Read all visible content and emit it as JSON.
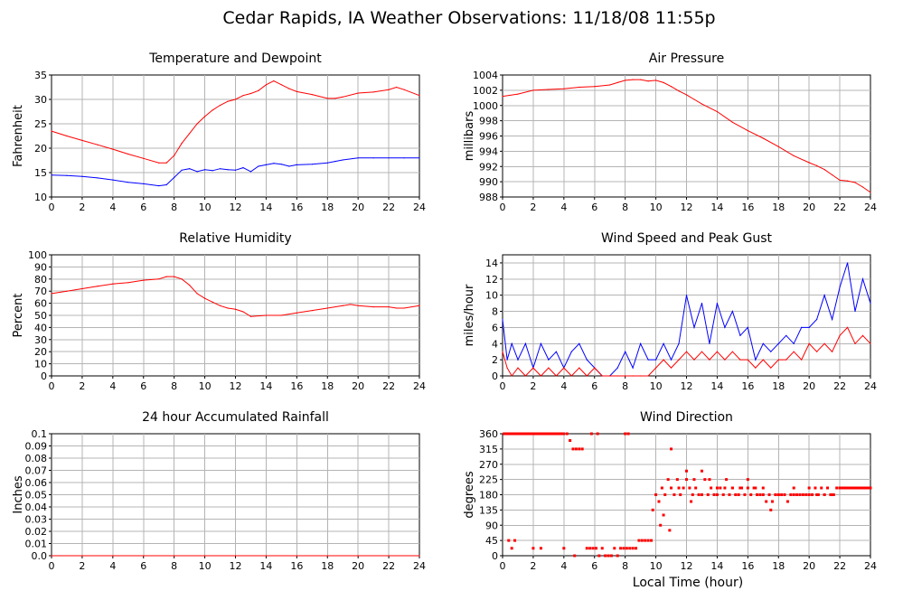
{
  "page_title": "Cedar Rapids, IA Weather Observations: 11/18/08 11:55p",
  "xlabel_global": "Local Time (hour)",
  "colors": {
    "red": "#ff0000",
    "blue": "#0000ff",
    "grid": "#b4b4b4"
  },
  "chart_data": [
    {
      "id": "temp",
      "type": "line",
      "title": "Temperature and Dewpoint",
      "ylabel": "Fahrenheit",
      "xlim": [
        0,
        24
      ],
      "ylim": [
        10,
        35
      ],
      "xticks": [
        0,
        2,
        4,
        6,
        8,
        10,
        12,
        14,
        16,
        18,
        20,
        22,
        24
      ],
      "yticks": [
        10,
        15,
        20,
        25,
        30,
        35
      ],
      "ytick_labels": [
        "10",
        "15",
        "20",
        "25",
        "30",
        "35"
      ],
      "grid": true,
      "series": [
        {
          "color": "#ff0000",
          "x": [
            0,
            1,
            2,
            3,
            4,
            5,
            6,
            7,
            7.5,
            8,
            8.5,
            9,
            9.5,
            10,
            10.5,
            11,
            11.5,
            12,
            12.5,
            13,
            13.5,
            14,
            14.5,
            15,
            15.5,
            16,
            17,
            18,
            18.5,
            19,
            20,
            21,
            22,
            22.5,
            23,
            24
          ],
          "y": [
            23.5,
            22.5,
            21.6,
            20.7,
            19.8,
            18.8,
            17.9,
            17.0,
            17.0,
            18.5,
            21.0,
            23.0,
            25.0,
            26.5,
            27.8,
            28.8,
            29.6,
            30.0,
            30.8,
            31.2,
            31.8,
            33.0,
            33.8,
            33.0,
            32.2,
            31.6,
            31.0,
            30.2,
            30.2,
            30.5,
            31.3,
            31.5,
            32.0,
            32.5,
            32.0,
            30.8
          ]
        },
        {
          "color": "#0000ff",
          "x": [
            0,
            1,
            2,
            3,
            4,
            5,
            6,
            7,
            7.5,
            8,
            8.5,
            9,
            9.5,
            10,
            10.5,
            11,
            11.5,
            12,
            12.5,
            13,
            13.5,
            14,
            14.5,
            15,
            15.5,
            16,
            17,
            18,
            18.5,
            19,
            20,
            21,
            22,
            23,
            24
          ],
          "y": [
            14.5,
            14.4,
            14.2,
            13.9,
            13.5,
            13.0,
            12.7,
            12.3,
            12.5,
            14.0,
            15.5,
            15.8,
            15.2,
            15.6,
            15.4,
            15.8,
            15.6,
            15.5,
            16.0,
            15.2,
            16.3,
            16.6,
            16.9,
            16.7,
            16.3,
            16.6,
            16.7,
            17.0,
            17.3,
            17.6,
            18.0,
            18.0,
            18.0,
            18.0,
            18.0
          ]
        }
      ]
    },
    {
      "id": "pressure",
      "type": "line",
      "title": "Air Pressure",
      "ylabel": "millibars",
      "xlim": [
        0,
        24
      ],
      "ylim": [
        988,
        1004
      ],
      "xticks": [
        0,
        2,
        4,
        6,
        8,
        10,
        12,
        14,
        16,
        18,
        20,
        22,
        24
      ],
      "yticks": [
        988,
        990,
        992,
        994,
        996,
        998,
        1000,
        1002,
        1004
      ],
      "ytick_labels": [
        "988",
        "990",
        "992",
        "994",
        "996",
        "998",
        "1000",
        "1002",
        "1004"
      ],
      "grid": true,
      "series": [
        {
          "color": "#ff0000",
          "x": [
            0,
            1,
            2,
            3,
            4,
            5,
            6,
            7,
            7.5,
            8,
            8.5,
            9,
            9.5,
            10,
            10.5,
            11,
            11.5,
            12,
            12.5,
            13,
            14,
            15,
            16,
            17,
            18,
            19,
            20,
            20.5,
            21,
            21.5,
            22,
            22.5,
            23,
            23.5,
            24
          ],
          "y": [
            1001.2,
            1001.5,
            1002.0,
            1002.1,
            1002.2,
            1002.4,
            1002.5,
            1002.7,
            1003.0,
            1003.3,
            1003.4,
            1003.4,
            1003.2,
            1003.3,
            1003.0,
            1002.5,
            1001.9,
            1001.4,
            1000.8,
            1000.2,
            999.2,
            997.8,
            996.7,
            995.7,
            994.6,
            993.4,
            992.5,
            992.1,
            991.6,
            990.9,
            990.2,
            990.1,
            989.9,
            989.3,
            988.6
          ]
        }
      ]
    },
    {
      "id": "humidity",
      "type": "line",
      "title": "Relative Humidity",
      "ylabel": "Percent",
      "xlim": [
        0,
        24
      ],
      "ylim": [
        0,
        100
      ],
      "xticks": [
        0,
        2,
        4,
        6,
        8,
        10,
        12,
        14,
        16,
        18,
        20,
        22,
        24
      ],
      "yticks": [
        0,
        10,
        20,
        30,
        40,
        50,
        60,
        70,
        80,
        90,
        100
      ],
      "ytick_labels": [
        "0",
        "10",
        "20",
        "30",
        "40",
        "50",
        "60",
        "70",
        "80",
        "90",
        "100"
      ],
      "grid": true,
      "series": [
        {
          "color": "#ff0000",
          "x": [
            0,
            1,
            2,
            3,
            4,
            5,
            6,
            7,
            7.5,
            8,
            8.5,
            9,
            9.5,
            10,
            10.5,
            11,
            11.5,
            12,
            12.5,
            13,
            14,
            15,
            16,
            17,
            18,
            19,
            19.5,
            20,
            21,
            22,
            22.5,
            23,
            24
          ],
          "y": [
            68,
            70,
            72,
            74,
            76,
            77,
            79,
            80,
            82,
            82,
            80,
            75,
            68,
            64,
            61,
            58,
            56,
            55,
            53,
            49,
            50,
            50,
            52,
            54,
            56,
            58,
            59,
            58,
            57,
            57,
            56,
            56,
            58
          ]
        }
      ]
    },
    {
      "id": "wind",
      "type": "line",
      "title": "Wind Speed and Peak Gust",
      "ylabel": "miles/hour",
      "xlim": [
        0,
        24
      ],
      "ylim": [
        0,
        15
      ],
      "xticks": [
        0,
        2,
        4,
        6,
        8,
        10,
        12,
        14,
        16,
        18,
        20,
        22,
        24
      ],
      "yticks": [
        0,
        2,
        4,
        6,
        8,
        10,
        12,
        14
      ],
      "ytick_labels": [
        "0",
        "2",
        "4",
        "6",
        "8",
        "10",
        "12",
        "14"
      ],
      "grid": true,
      "series": [
        {
          "color": "#0000ff",
          "x": [
            0,
            0.3,
            0.6,
            1,
            1.5,
            2,
            2.5,
            3,
            3.5,
            4,
            4.5,
            5,
            5.5,
            6,
            6.5,
            7,
            7.5,
            8,
            8.5,
            9,
            9.5,
            10,
            10.5,
            11,
            11.5,
            12,
            12.5,
            13,
            13.5,
            14,
            14.5,
            15,
            15.5,
            16,
            16.5,
            17,
            17.5,
            18,
            18.5,
            19,
            19.5,
            20,
            20.5,
            21,
            21.5,
            22,
            22.5,
            23,
            23.5,
            24
          ],
          "y": [
            7,
            2,
            4,
            2,
            4,
            1,
            4,
            2,
            3,
            1,
            3,
            4,
            2,
            1,
            0,
            0,
            1,
            3,
            1,
            4,
            2,
            2,
            4,
            2,
            4,
            10,
            6,
            9,
            4,
            9,
            6,
            8,
            5,
            6,
            2,
            4,
            3,
            4,
            5,
            4,
            6,
            6,
            7,
            10,
            7,
            11,
            14,
            8,
            12,
            9
          ]
        },
        {
          "color": "#ff0000",
          "x": [
            0,
            0.3,
            0.6,
            1,
            1.5,
            2,
            2.5,
            3,
            3.5,
            4,
            4.5,
            5,
            5.5,
            6,
            6.5,
            7,
            7.5,
            8,
            8.5,
            9,
            9.5,
            10,
            10.5,
            11,
            11.5,
            12,
            12.5,
            13,
            13.5,
            14,
            14.5,
            15,
            15.5,
            16,
            16.5,
            17,
            17.5,
            18,
            18.5,
            19,
            19.5,
            20,
            20.5,
            21,
            21.5,
            22,
            22.5,
            23,
            23.5,
            24
          ],
          "y": [
            3,
            1,
            0,
            1,
            0,
            1,
            0,
            1,
            0,
            1,
            0,
            1,
            0,
            1,
            0,
            0,
            0,
            0,
            0,
            0,
            0,
            1,
            2,
            1,
            2,
            3,
            2,
            3,
            2,
            3,
            2,
            3,
            2,
            2,
            1,
            2,
            1,
            2,
            2,
            3,
            2,
            4,
            3,
            4,
            3,
            5,
            6,
            4,
            5,
            4
          ]
        }
      ]
    },
    {
      "id": "rain",
      "type": "line",
      "title": "24 hour Accumulated Rainfall",
      "ylabel": "Inches",
      "xlim": [
        0,
        24
      ],
      "ylim": [
        0,
        0.1
      ],
      "xticks": [
        0,
        2,
        4,
        6,
        8,
        10,
        12,
        14,
        16,
        18,
        20,
        22,
        24
      ],
      "yticks": [
        0,
        0.01,
        0.02,
        0.03,
        0.04,
        0.05,
        0.06,
        0.07,
        0.08,
        0.09,
        0.1
      ],
      "ytick_labels": [
        "0.0",
        "0.01",
        "0.02",
        "0.03",
        "0.04",
        "0.05",
        "0.06",
        "0.07",
        "0.08",
        "0.09",
        "0.1"
      ],
      "grid": true,
      "series": [
        {
          "color": "#ff0000",
          "x": [
            0,
            24
          ],
          "y": [
            0,
            0
          ]
        }
      ]
    },
    {
      "id": "direction",
      "type": "scatter",
      "title": "Wind Direction",
      "ylabel": "degrees",
      "xlabel": "Local Time (hour)",
      "xlim": [
        0,
        24
      ],
      "ylim": [
        0,
        360
      ],
      "xticks": [
        0,
        2,
        4,
        6,
        8,
        10,
        12,
        14,
        16,
        18,
        20,
        22,
        24
      ],
      "yticks": [
        0,
        45,
        90,
        135,
        180,
        225,
        270,
        315,
        360
      ],
      "ytick_labels": [
        "0",
        "45",
        "90",
        "135",
        "180",
        "225",
        "270",
        "315",
        "360"
      ],
      "grid": true,
      "series": [
        {
          "color": "#ff0000",
          "x": [
            0.1,
            0.3,
            0.5,
            0.7,
            0.9,
            1.1,
            1.3,
            1.5,
            1.7,
            1.9,
            2.1,
            2.3,
            2.5,
            2.7,
            2.9,
            3.1,
            3.3,
            3.5,
            3.7,
            3.9,
            0.4,
            0.6,
            0.8,
            2.0,
            2.5,
            4.0,
            4.2,
            4.4,
            4.6,
            4.8,
            5.0,
            5.2,
            4.7,
            5.5,
            5.7,
            5.9,
            6.1,
            6.3,
            6.5,
            6.7,
            6.9,
            7.1,
            7.3,
            7.5,
            7.7,
            7.9,
            8.1,
            8.3,
            8.5,
            8.7,
            8.9,
            9.1,
            9.3,
            9.5,
            9.7,
            5.8,
            6.2,
            8.0,
            8.2,
            9.8,
            10.0,
            10.2,
            10.4,
            10.6,
            10.8,
            11.0,
            11.2,
            11.4,
            11.6,
            11.8,
            12.0,
            12.2,
            12.4,
            12.6,
            12.8,
            13.0,
            13.2,
            13.4,
            13.6,
            13.8,
            14.0,
            14.2,
            14.4,
            14.6,
            14.8,
            15.0,
            15.2,
            15.4,
            15.6,
            15.8,
            16.0,
            16.2,
            16.4,
            16.6,
            16.8,
            17.0,
            17.2,
            17.4,
            17.6,
            17.8,
            18.0,
            18.2,
            18.4,
            18.6,
            18.8,
            19.0,
            19.2,
            19.4,
            19.6,
            19.8,
            20.0,
            20.2,
            20.4,
            20.6,
            20.8,
            21.0,
            21.2,
            21.4,
            21.6,
            21.8,
            22.0,
            22.2,
            22.4,
            22.6,
            22.8,
            23.0,
            23.2,
            23.4,
            23.6,
            23.8,
            24.0,
            11.0,
            12.0,
            12.5,
            13.0,
            13.5,
            14.0,
            14.5,
            15.0,
            15.5,
            16.0,
            17.0,
            17.5,
            18.0,
            19.0,
            20.0,
            21.0,
            10.3,
            10.5,
            10.9,
            11.5,
            12.3,
            16.5,
            20.5,
            21.5,
            22.5
          ],
          "y": [
            360,
            360,
            360,
            360,
            360,
            360,
            360,
            360,
            360,
            360,
            360,
            360,
            360,
            360,
            360,
            360,
            360,
            360,
            360,
            360,
            45,
            22,
            45,
            22,
            22,
            22,
            360,
            340,
            315,
            315,
            315,
            315,
            0,
            22,
            22,
            22,
            22,
            0,
            22,
            0,
            0,
            0,
            22,
            0,
            22,
            22,
            22,
            22,
            22,
            22,
            45,
            45,
            45,
            45,
            45,
            360,
            360,
            360,
            360,
            135,
            180,
            160,
            200,
            180,
            225,
            200,
            180,
            225,
            180,
            200,
            225,
            200,
            180,
            200,
            180,
            180,
            225,
            180,
            200,
            180,
            180,
            200,
            180,
            225,
            180,
            200,
            180,
            180,
            200,
            180,
            200,
            180,
            200,
            180,
            180,
            180,
            160,
            180,
            160,
            180,
            180,
            180,
            180,
            160,
            180,
            200,
            180,
            180,
            180,
            180,
            200,
            180,
            200,
            180,
            200,
            180,
            200,
            180,
            180,
            200,
            200,
            200,
            200,
            200,
            200,
            200,
            200,
            200,
            200,
            200,
            200,
            315,
            250,
            225,
            250,
            225,
            200,
            200,
            200,
            200,
            225,
            200,
            135,
            180,
            180,
            180,
            180,
            90,
            120,
            75,
            200,
            160,
            200,
            180,
            180,
            200
          ]
        }
      ]
    }
  ]
}
